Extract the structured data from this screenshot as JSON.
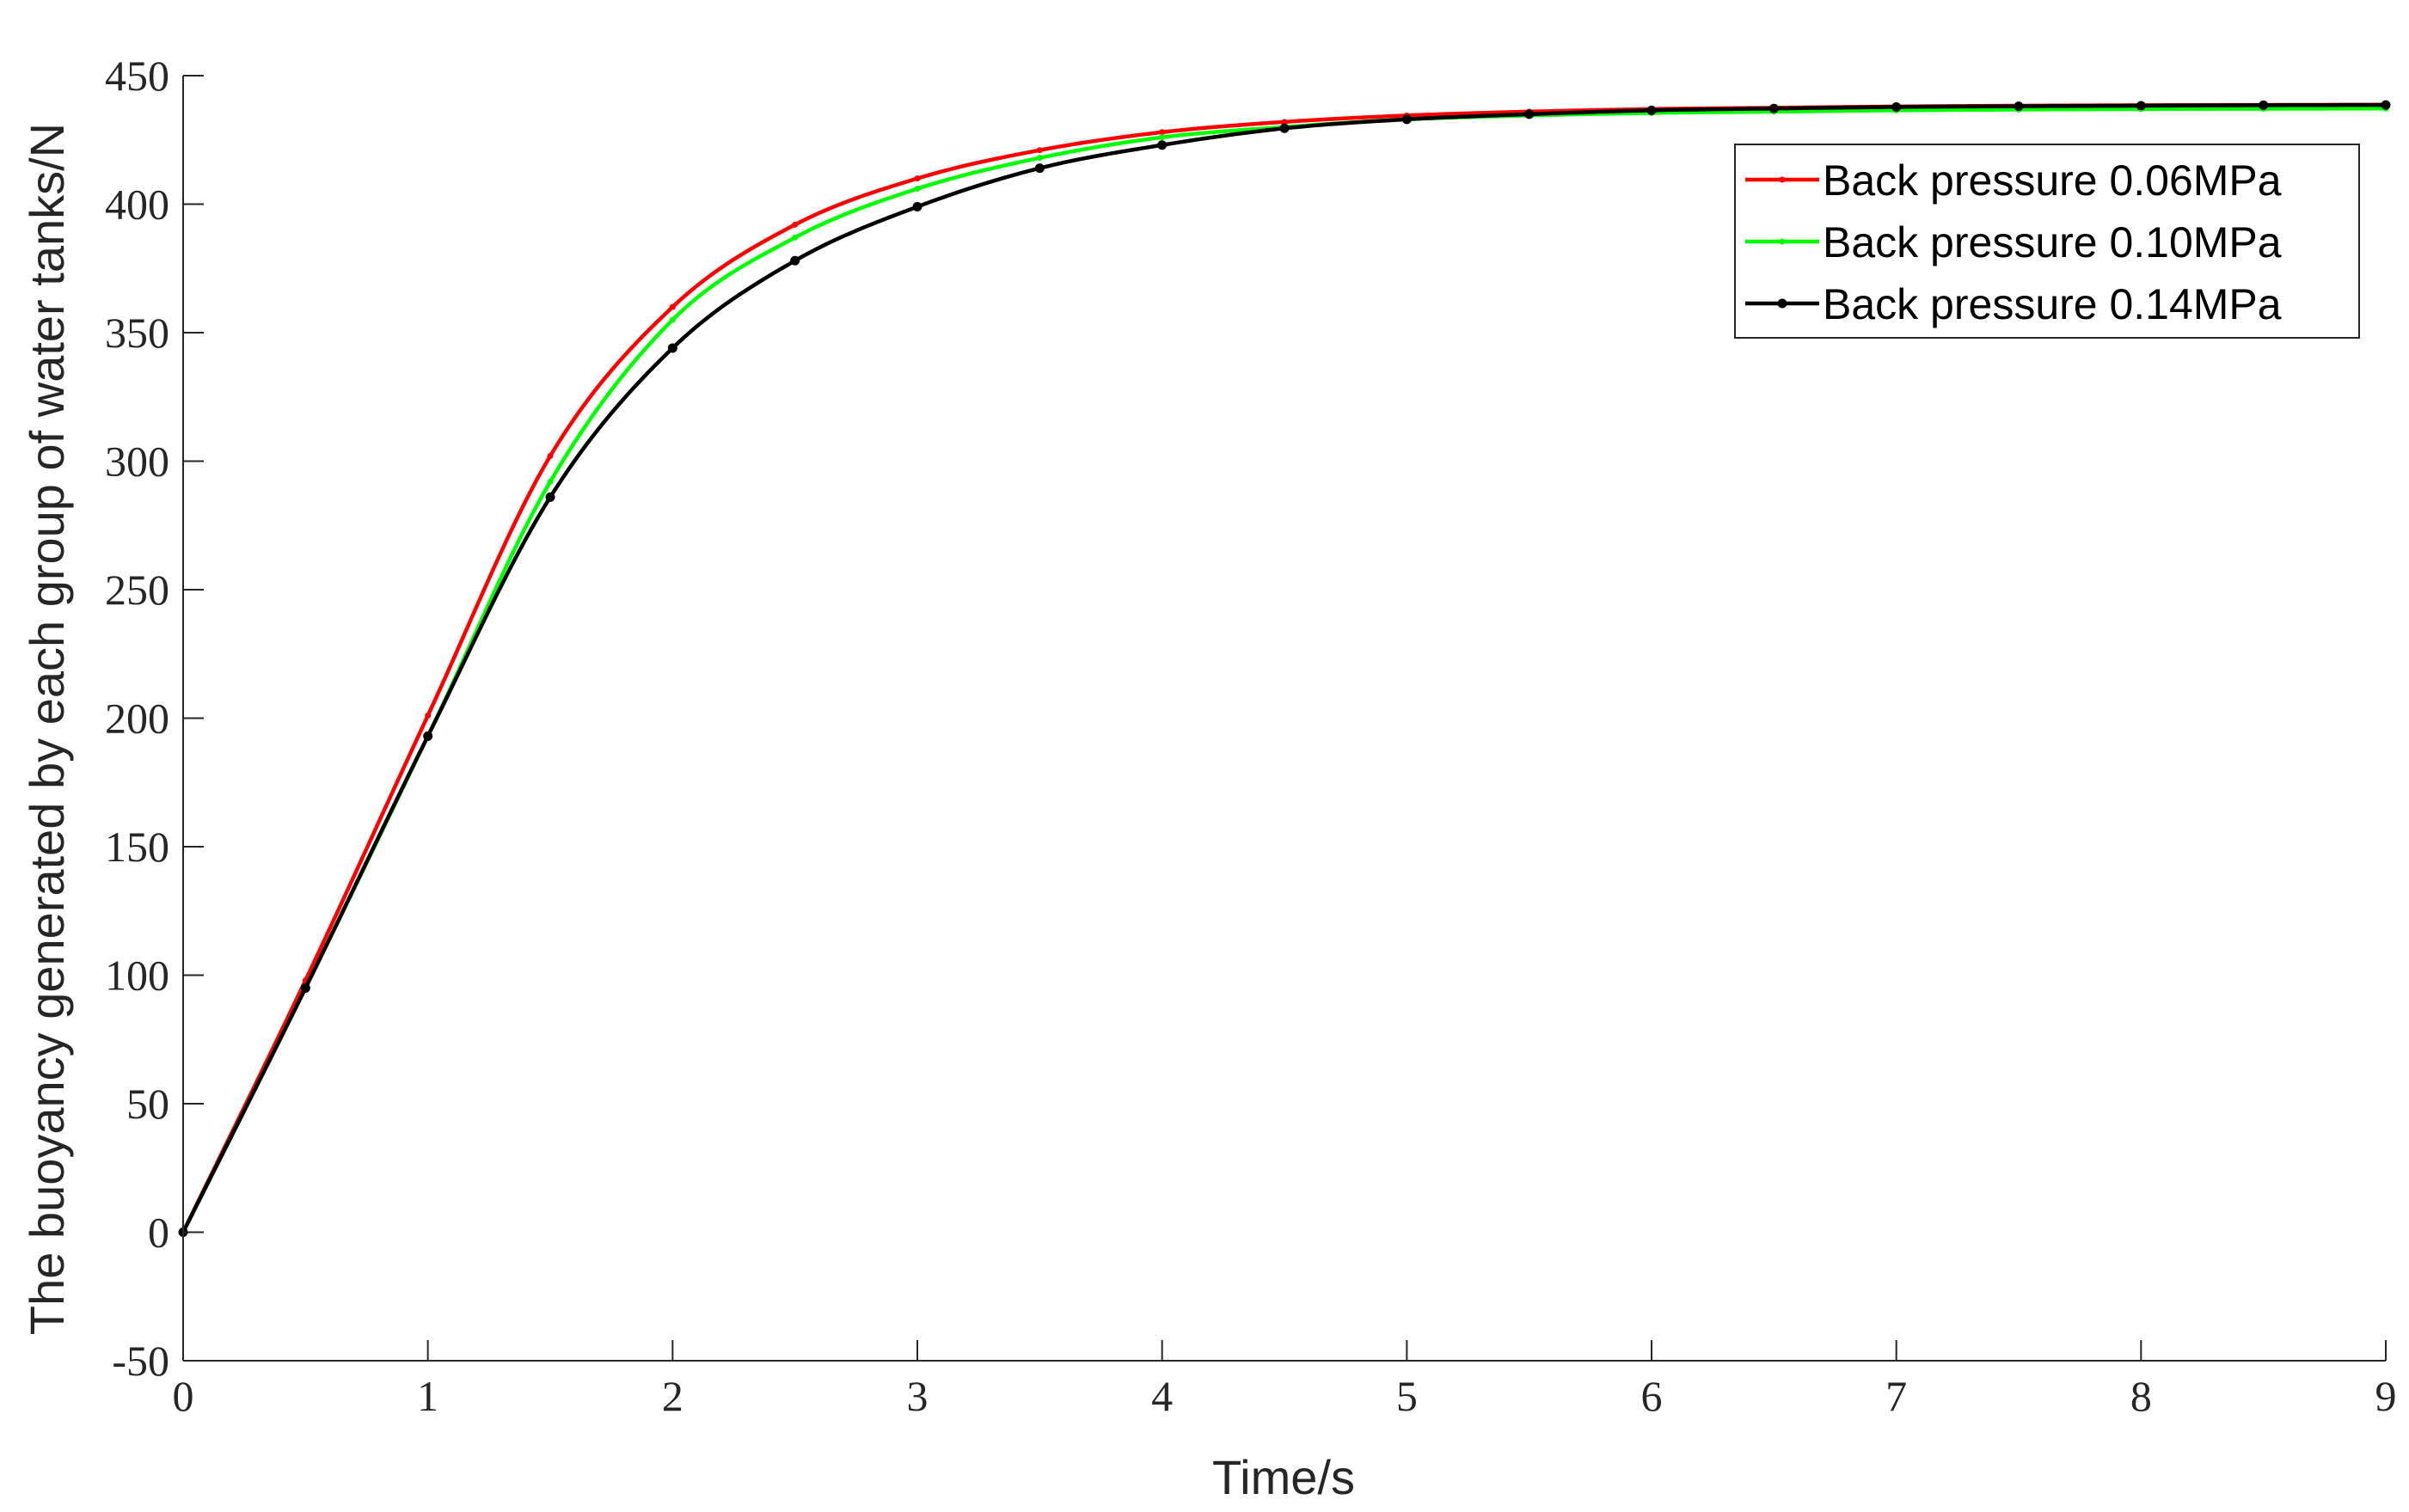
{
  "chart_data": {
    "type": "line",
    "title": "",
    "xlabel": "Time/s",
    "ylabel": "The buoyancy generated by each group of water tanks/N",
    "xlim": [
      0,
      9
    ],
    "ylim": [
      -50,
      450
    ],
    "x_ticks": [
      "0",
      "1",
      "2",
      "3",
      "4",
      "5",
      "6",
      "7",
      "8",
      "9"
    ],
    "y_ticks": [
      "-50",
      "0",
      "50",
      "100",
      "150",
      "200",
      "250",
      "300",
      "350",
      "400",
      "450"
    ],
    "grid": false,
    "legend_position": "top-right",
    "series": [
      {
        "name": "Back pressure 0.06MPa",
        "color": "#ff0000",
        "marker_x": [
          0,
          0.5,
          1,
          1.5,
          2,
          2.5,
          3,
          3.5,
          4,
          4.5,
          5,
          5.5,
          6,
          6.5,
          7,
          7.5,
          8,
          8.5,
          9
        ],
        "values": [
          0,
          98,
          201,
          302,
          360,
          392,
          410,
          421,
          428,
          432,
          434.5,
          436,
          437,
          437.5,
          438,
          438.3,
          438.5,
          438.6,
          438.7
        ]
      },
      {
        "name": "Back pressure 0.10MPa",
        "color": "#00ff00",
        "marker_x": [
          0,
          0.5,
          1,
          1.5,
          2,
          2.5,
          3,
          3.5,
          4,
          4.5,
          5,
          5.5,
          6,
          6.5,
          7,
          7.5,
          8,
          8.5,
          9
        ],
        "values": [
          0,
          95,
          193,
          292,
          355,
          387,
          406,
          418,
          426,
          430,
          433,
          434.5,
          435.5,
          436,
          436.5,
          436.8,
          437,
          437.1,
          437.2
        ]
      },
      {
        "name": "Back pressure 0.14MPa",
        "color": "#000000",
        "marker_x": [
          0,
          0.5,
          1,
          1.5,
          2,
          2.5,
          3,
          3.5,
          4,
          4.5,
          5,
          5.5,
          6,
          6.5,
          7,
          7.5,
          8,
          8.5,
          9
        ],
        "values": [
          0,
          95,
          193,
          286,
          344,
          378,
          399,
          414,
          423,
          429.5,
          433,
          435,
          436.5,
          437.2,
          437.8,
          438.1,
          438.3,
          438.5,
          438.6
        ]
      }
    ]
  }
}
